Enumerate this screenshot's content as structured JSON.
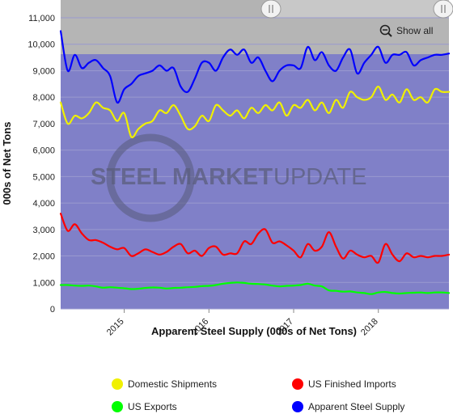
{
  "chart_data": {
    "type": "line",
    "xlabel": "Apparent Steel Supply (000s of Net Tons)",
    "ylabel": "000s of Net Tons",
    "ylim": [
      0,
      11000
    ],
    "yticks": [
      0,
      1000,
      2000,
      3000,
      4000,
      5000,
      6000,
      7000,
      8000,
      9000,
      10000,
      11000
    ],
    "ytick_labels": [
      "0",
      "1,000",
      "2,000",
      "3,000",
      "4,000",
      "5,000",
      "6,000",
      "7,000",
      "8,000",
      "9,000",
      "10,000",
      "11,000"
    ],
    "xlim": [
      "2014-04",
      "2018-11"
    ],
    "xticks": [
      "2015-01",
      "2016-01",
      "2017-01",
      "2018-01"
    ],
    "xtick_labels": [
      "2015",
      "2016",
      "2017",
      "2018"
    ],
    "grid": true,
    "legend_position": "bottom",
    "months": [
      "2014-04",
      "2014-05",
      "2014-06",
      "2014-07",
      "2014-08",
      "2014-09",
      "2014-10",
      "2014-11",
      "2014-12",
      "2015-01",
      "2015-02",
      "2015-03",
      "2015-04",
      "2015-05",
      "2015-06",
      "2015-07",
      "2015-08",
      "2015-09",
      "2015-10",
      "2015-11",
      "2015-12",
      "2016-01",
      "2016-02",
      "2016-03",
      "2016-04",
      "2016-05",
      "2016-06",
      "2016-07",
      "2016-08",
      "2016-09",
      "2016-10",
      "2016-11",
      "2016-12",
      "2017-01",
      "2017-02",
      "2017-03",
      "2017-04",
      "2017-05",
      "2017-06",
      "2017-07",
      "2017-08",
      "2017-09",
      "2017-10",
      "2017-11",
      "2017-12",
      "2018-01",
      "2018-02",
      "2018-03",
      "2018-04",
      "2018-05",
      "2018-06",
      "2018-07",
      "2018-08",
      "2018-09",
      "2018-10",
      "2018-11"
    ],
    "series": [
      {
        "name": "Domestic Shipments",
        "color": "#f0f000",
        "values": [
          7800,
          7000,
          7300,
          7200,
          7400,
          7800,
          7600,
          7500,
          7100,
          7400,
          6500,
          6800,
          7000,
          7100,
          7500,
          7400,
          7700,
          7300,
          6800,
          6900,
          7300,
          7100,
          7700,
          7500,
          7300,
          7500,
          7200,
          7600,
          7400,
          7700,
          7500,
          7800,
          7300,
          7700,
          7600,
          7900,
          7500,
          7800,
          7400,
          7900,
          7600,
          8200,
          8000,
          7900,
          8000,
          8400,
          7900,
          8100,
          7800,
          8300,
          7900,
          8000,
          7800,
          8300,
          8200,
          8200
        ]
      },
      {
        "name": "US Finished Imports",
        "color": "#ff0000",
        "values": [
          3600,
          2950,
          3200,
          2850,
          2600,
          2600,
          2500,
          2350,
          2250,
          2300,
          2000,
          2100,
          2250,
          2150,
          2050,
          2150,
          2350,
          2450,
          2100,
          2200,
          2000,
          2300,
          2350,
          2050,
          2100,
          2100,
          2550,
          2450,
          2850,
          3000,
          2500,
          2550,
          2400,
          2200,
          1950,
          2450,
          2200,
          2350,
          2900,
          2350,
          1900,
          2200,
          2050,
          1950,
          2000,
          1750,
          2450,
          2050,
          1800,
          2100,
          1950,
          2000,
          1950,
          2000,
          2000,
          2050
        ]
      },
      {
        "name": "US Exports",
        "color": "#00ff00",
        "values": [
          900,
          900,
          880,
          870,
          880,
          850,
          800,
          820,
          800,
          780,
          750,
          760,
          790,
          810,
          800,
          770,
          790,
          800,
          820,
          830,
          860,
          870,
          900,
          950,
          980,
          1000,
          980,
          950,
          940,
          920,
          880,
          850,
          870,
          880,
          900,
          950,
          880,
          850,
          700,
          680,
          650,
          660,
          620,
          600,
          560,
          620,
          640,
          600,
          580,
          600,
          610,
          620,
          600,
          620,
          620,
          600
        ]
      },
      {
        "name": "Apparent Steel Supply",
        "color": "#0000ff",
        "values": [
          10500,
          9000,
          9600,
          9100,
          9300,
          9400,
          9100,
          8800,
          7800,
          8300,
          8500,
          8800,
          8900,
          9000,
          9200,
          9000,
          9100,
          8400,
          8200,
          8700,
          9300,
          9300,
          9000,
          9500,
          9800,
          9600,
          9800,
          9300,
          9500,
          9000,
          8600,
          9000,
          9200,
          9200,
          9100,
          9900,
          9400,
          9700,
          9200,
          9000,
          9500,
          9800,
          8900,
          9300,
          9600,
          9900,
          9300,
          9600,
          9600,
          9700,
          9200,
          9400,
          9500,
          9600,
          9600,
          9650
        ]
      }
    ]
  },
  "watermark": {
    "word1": "STEEL",
    "word2": "MARKET",
    "word3": "UPDATE"
  },
  "controls": {
    "show_all_label": "Show all",
    "zoom_icon": "zoom-out-icon",
    "handle_icon": "grip-icon"
  },
  "colors": {
    "plot_background": "#8080c8",
    "navigator_mask": "#b3b3b3",
    "gridline": "#9a9acf"
  }
}
